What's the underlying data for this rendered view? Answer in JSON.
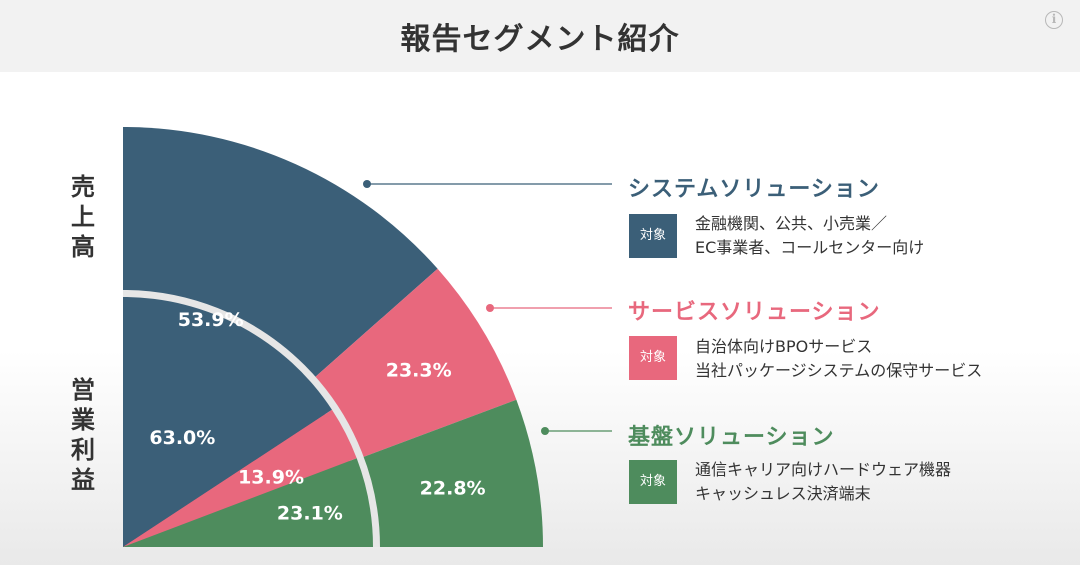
{
  "header": {
    "title": "報告セグメント紹介",
    "info_icon": "info-icon"
  },
  "labels": {
    "sales": [
      "売",
      "上",
      "高"
    ],
    "profit": [
      "営",
      "業",
      "利",
      "益"
    ]
  },
  "colors": {
    "system": "#3b5f78",
    "service": "#e8687d",
    "infra": "#4e8c5d",
    "ring_gap": "#e6e6e6"
  },
  "segments": [
    {
      "key": "system",
      "name": "システムソリューション",
      "badge": "対象",
      "desc": [
        "金融機関、公共、小売業／",
        "EC事業者、コールセンター向け"
      ]
    },
    {
      "key": "service",
      "name": "サービスソリューション",
      "badge": "対象",
      "desc": [
        "自治体向けBPOサービス",
        "当社パッケージシステムの保守サービス"
      ]
    },
    {
      "key": "infra",
      "name": "基盤ソリューション",
      "badge": "対象",
      "desc": [
        "通信キャリア向けハードウェア機器",
        "キャッシュレス決済端末"
      ]
    }
  ],
  "chart_data": {
    "type": "pie",
    "title": "",
    "series": [
      {
        "name": "売上高",
        "categories": [
          "システムソリューション",
          "サービスソリューション",
          "基盤ソリューション"
        ],
        "values": [
          53.9,
          23.3,
          22.8
        ],
        "labels": [
          "53.9%",
          "23.3%",
          "22.8%"
        ]
      },
      {
        "name": "営業利益",
        "categories": [
          "システムソリューション",
          "サービスソリューション",
          "基盤ソリューション"
        ],
        "values": [
          63.0,
          13.9,
          23.1
        ],
        "labels": [
          "63.0%",
          "13.9%",
          "23.1%"
        ]
      }
    ]
  }
}
